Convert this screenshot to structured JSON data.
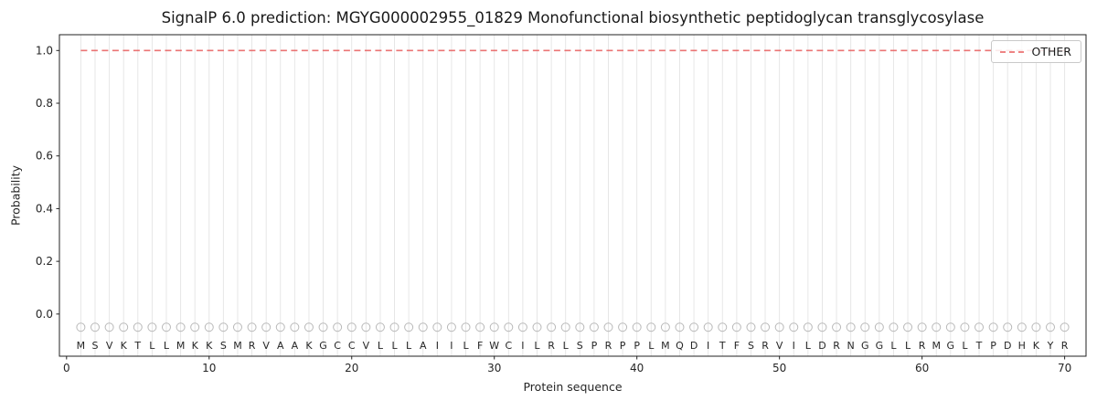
{
  "title": "SignalP 6.0 prediction: MGYG000002955_01829 Monofunctional biosynthetic peptidoglycan transglycosylase",
  "colors": {
    "line": "#e85c5c",
    "grid": "#e4e4e4",
    "marker": "#b9b9b9",
    "spine": "#222222",
    "text": "#262626",
    "background": "#ffffff"
  },
  "chart_data": {
    "type": "line",
    "title": "SignalP 6.0 prediction: MGYG000002955_01829 Monofunctional biosynthetic peptidoglycan transglycosylase",
    "xlabel": "Protein sequence",
    "ylabel": "Probability",
    "xlim": [
      -0.5,
      71.5
    ],
    "ylim": [
      -0.16,
      1.06
    ],
    "xticks": [
      0,
      10,
      20,
      30,
      40,
      50,
      60,
      70
    ],
    "yticks": [
      0.0,
      0.2,
      0.4,
      0.6,
      0.8,
      1.0
    ],
    "grid": true,
    "grid_x_step": 1,
    "legend": {
      "position": "upper right",
      "entries": [
        {
          "label": "OTHER",
          "style": "dashed",
          "color": "#e85c5c"
        }
      ]
    },
    "series": [
      {
        "name": "OTHER",
        "color": "#e85c5c",
        "dashed": true,
        "x": [
          1,
          2,
          3,
          4,
          5,
          6,
          7,
          8,
          9,
          10,
          11,
          12,
          13,
          14,
          15,
          16,
          17,
          18,
          19,
          20,
          21,
          22,
          23,
          24,
          25,
          26,
          27,
          28,
          29,
          30,
          31,
          32,
          33,
          34,
          35,
          36,
          37,
          38,
          39,
          40,
          41,
          42,
          43,
          44,
          45,
          46,
          47,
          48,
          49,
          50,
          51,
          52,
          53,
          54,
          55,
          56,
          57,
          58,
          59,
          60,
          61,
          62,
          63,
          64,
          65,
          66,
          67,
          68,
          69,
          70
        ],
        "values": [
          1.0,
          1.0,
          1.0,
          1.0,
          1.0,
          1.0,
          1.0,
          1.0,
          1.0,
          1.0,
          1.0,
          1.0,
          1.0,
          1.0,
          1.0,
          1.0,
          1.0,
          1.0,
          1.0,
          1.0,
          1.0,
          1.0,
          1.0,
          1.0,
          1.0,
          1.0,
          1.0,
          1.0,
          1.0,
          1.0,
          1.0,
          1.0,
          1.0,
          1.0,
          1.0,
          1.0,
          1.0,
          1.0,
          1.0,
          1.0,
          1.0,
          1.0,
          1.0,
          1.0,
          1.0,
          1.0,
          1.0,
          1.0,
          1.0,
          1.0,
          1.0,
          1.0,
          1.0,
          1.0,
          1.0,
          1.0,
          1.0,
          1.0,
          1.0,
          1.0,
          1.0,
          1.0,
          1.0,
          1.0,
          1.0,
          1.0,
          1.0,
          1.0,
          1.0,
          1.0
        ]
      }
    ],
    "sequence": [
      "M",
      "S",
      "V",
      "K",
      "T",
      "L",
      "L",
      "M",
      "K",
      "K",
      "S",
      "M",
      "R",
      "V",
      "A",
      "A",
      "K",
      "G",
      "C",
      "C",
      "V",
      "L",
      "L",
      "L",
      "A",
      "I",
      "I",
      "L",
      "F",
      "W",
      "C",
      "I",
      "L",
      "R",
      "L",
      "S",
      "P",
      "R",
      "P",
      "P",
      "L",
      "M",
      "Q",
      "D",
      "I",
      "T",
      "F",
      "S",
      "R",
      "V",
      "I",
      "L",
      "D",
      "R",
      "N",
      "G",
      "G",
      "L",
      "L",
      "R",
      "M",
      "G",
      "L",
      "T",
      "P",
      "D",
      "H",
      "K",
      "Y",
      "R"
    ],
    "marker_row": {
      "y": -0.05,
      "marker": "open-circle"
    },
    "letter_row_y": -0.118
  }
}
